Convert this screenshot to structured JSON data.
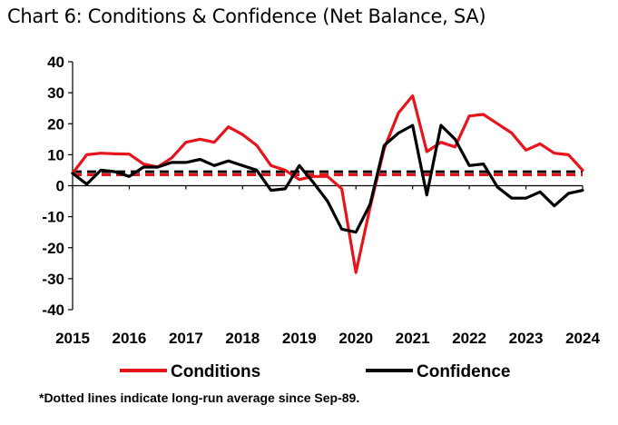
{
  "chart_data": {
    "type": "line",
    "title": "Chart 6: Conditions & Confidence (Net Balance, SA)",
    "xlabel": "",
    "ylabel": "",
    "xlim": [
      2015,
      2024
    ],
    "ylim": [
      -40,
      40
    ],
    "y_ticks": [
      "40",
      "30",
      "20",
      "10",
      "0",
      "-10",
      "-20",
      "-30",
      "-40"
    ],
    "y_tick_values": [
      40,
      30,
      20,
      10,
      0,
      -10,
      -20,
      -30,
      -40
    ],
    "x_ticks": [
      "2015",
      "2016",
      "2017",
      "2018",
      "2019",
      "2020",
      "2021",
      "2022",
      "2023",
      "2024"
    ],
    "x_tick_values": [
      2015,
      2016,
      2017,
      2018,
      2019,
      2020,
      2021,
      2022,
      2023,
      2024
    ],
    "series": [
      {
        "name": "Conditions",
        "color": "#e8141b",
        "x": [
          2015.0,
          2015.25,
          2015.5,
          2015.75,
          2016.0,
          2016.25,
          2016.5,
          2016.75,
          2017.0,
          2017.25,
          2017.5,
          2017.75,
          2018.0,
          2018.25,
          2018.5,
          2018.75,
          2019.0,
          2019.25,
          2019.5,
          2019.75,
          2020.0,
          2020.25,
          2020.5,
          2020.75,
          2021.0,
          2021.25,
          2021.5,
          2021.75,
          2022.0,
          2022.25,
          2022.5,
          2022.75,
          2023.0,
          2023.25,
          2023.5,
          2023.75,
          2024.0
        ],
        "values": [
          4,
          10,
          10.5,
          10.3,
          10.2,
          7,
          6,
          9,
          14,
          15,
          14,
          19,
          16.5,
          13,
          6.5,
          5,
          2,
          3,
          3,
          -1,
          -28,
          -7,
          12,
          23.5,
          29,
          11,
          14,
          12.5,
          22.5,
          23,
          20,
          17,
          11.5,
          13.5,
          10.5,
          10,
          5
        ]
      },
      {
        "name": "Confidence",
        "color": "#000000",
        "x": [
          2015.0,
          2015.25,
          2015.5,
          2015.75,
          2016.0,
          2016.25,
          2016.5,
          2016.75,
          2017.0,
          2017.25,
          2017.5,
          2017.75,
          2018.0,
          2018.25,
          2018.5,
          2018.75,
          2019.0,
          2019.25,
          2019.5,
          2019.75,
          2020.0,
          2020.25,
          2020.5,
          2020.75,
          2021.0,
          2021.25,
          2021.5,
          2021.75,
          2022.0,
          2022.25,
          2022.5,
          2022.75,
          2023.0,
          2023.25,
          2023.5,
          2023.75,
          2024.0
        ],
        "values": [
          4,
          0.5,
          5,
          4.5,
          3,
          6,
          6,
          7.5,
          7.5,
          8.5,
          6.5,
          8,
          6.5,
          5,
          -1.5,
          -1,
          6.5,
          1,
          -5,
          -14,
          -15,
          -6,
          13,
          17,
          19.5,
          -3,
          19.5,
          15,
          6.5,
          7,
          -0.5,
          -4,
          -4,
          -2,
          -6.5,
          -2.5,
          -1.5
        ]
      }
    ],
    "reference_lines": [
      {
        "name": "Conditions long-run average",
        "color": "#e8141b",
        "value": 3.5,
        "style": "dotted"
      },
      {
        "name": "Confidence long-run average",
        "color": "#000000",
        "value": 4.5,
        "style": "dotted"
      }
    ],
    "legend": {
      "position": "bottom",
      "entries": [
        "Conditions",
        "Confidence"
      ]
    },
    "footnote": "*Dotted lines indicate long-run average since Sep-89."
  }
}
